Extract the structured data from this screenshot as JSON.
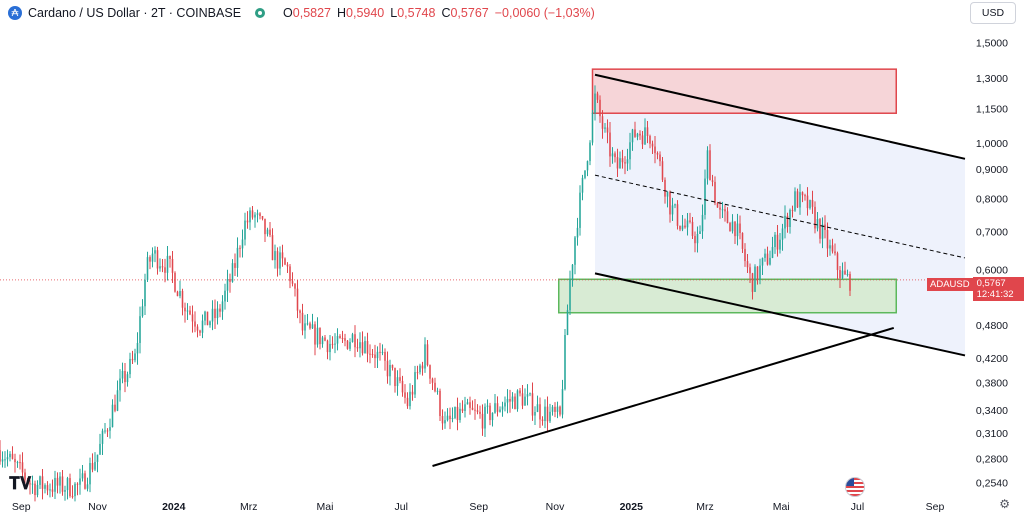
{
  "header": {
    "title": "Cardano / US Dollar · 2T · COINBASE",
    "logo_glyph": "₳",
    "o_label": "O",
    "o_value": "0,5827",
    "h_label": "H",
    "h_value": "0,5940",
    "l_label": "L",
    "l_value": "0,5748",
    "c_label": "C",
    "c_value": "0,5767",
    "change": "−0,0060 (−1,03%)"
  },
  "currency_button": "USD",
  "price_badge": {
    "symbol": "ADAUSD",
    "price": "0,5767",
    "countdown": "12:41:32"
  },
  "colors": {
    "bull": "#26a69a",
    "bear": "#e0464c",
    "resistance_fill": "#f6d5d8",
    "resistance_border": "#e0464c",
    "support_fill": "#d8ebd4",
    "support_border": "#5cb85c",
    "channel_fill": "#eef2fc",
    "trendline": "#000000"
  },
  "chart_data": {
    "type": "candlestick",
    "title": "Cardano / US Dollar · 2T · COINBASE",
    "y_scale": "log",
    "ylim": [
      0.24,
      1.62
    ],
    "y_ticks": [
      {
        "v": 1.5,
        "label": "1,5000"
      },
      {
        "v": 1.3,
        "label": "1,3000"
      },
      {
        "v": 1.15,
        "label": "1,1500"
      },
      {
        "v": 1.0,
        "label": "1,0000"
      },
      {
        "v": 0.9,
        "label": "0,9000"
      },
      {
        "v": 0.8,
        "label": "0,8000"
      },
      {
        "v": 0.7,
        "label": "0,7000"
      },
      {
        "v": 0.6,
        "label": "0,6000"
      },
      {
        "v": 0.48,
        "label": "0,4800"
      },
      {
        "v": 0.42,
        "label": "0,4200"
      },
      {
        "v": 0.38,
        "label": "0,3800"
      },
      {
        "v": 0.34,
        "label": "0,3400"
      },
      {
        "v": 0.31,
        "label": "0,3100"
      },
      {
        "v": 0.28,
        "label": "0,2800"
      },
      {
        "v": 0.254,
        "label": "0,2540"
      }
    ],
    "xlim": [
      "2023-08-15",
      "2025-09-25"
    ],
    "x_ticks": [
      {
        "date": "2023-09-01",
        "label": "Sep",
        "bold": false
      },
      {
        "date": "2023-11-01",
        "label": "Nov",
        "bold": false
      },
      {
        "date": "2024-01-01",
        "label": "2024",
        "bold": true
      },
      {
        "date": "2024-03-01",
        "label": "Mrz",
        "bold": false
      },
      {
        "date": "2024-05-01",
        "label": "Mai",
        "bold": false
      },
      {
        "date": "2024-07-01",
        "label": "Jul",
        "bold": false
      },
      {
        "date": "2024-09-01",
        "label": "Sep",
        "bold": false
      },
      {
        "date": "2024-11-01",
        "label": "Nov",
        "bold": false
      },
      {
        "date": "2025-01-01",
        "label": "2025",
        "bold": true
      },
      {
        "date": "2025-03-01",
        "label": "Mrz",
        "bold": false
      },
      {
        "date": "2025-05-01",
        "label": "Mai",
        "bold": false
      },
      {
        "date": "2025-07-01",
        "label": "Jul",
        "bold": false
      },
      {
        "date": "2025-09-01",
        "label": "Sep",
        "bold": false
      }
    ],
    "candle_period_days": 2,
    "price_path": [
      [
        "2023-08-15",
        0.29
      ],
      [
        "2023-09-10",
        0.252
      ],
      [
        "2023-10-18",
        0.25
      ],
      [
        "2023-11-01",
        0.285
      ],
      [
        "2023-11-20",
        0.38
      ],
      [
        "2023-12-01",
        0.42
      ],
      [
        "2023-12-10",
        0.6
      ],
      [
        "2023-12-15",
        0.64
      ],
      [
        "2023-12-28",
        0.61
      ],
      [
        "2024-01-10",
        0.52
      ],
      [
        "2024-01-22",
        0.48
      ],
      [
        "2024-02-05",
        0.5
      ],
      [
        "2024-02-18",
        0.6
      ],
      [
        "2024-02-26",
        0.72
      ],
      [
        "2024-03-05",
        0.75
      ],
      [
        "2024-03-14",
        0.7
      ],
      [
        "2024-03-22",
        0.63
      ],
      [
        "2024-04-02",
        0.6
      ],
      [
        "2024-04-13",
        0.47
      ],
      [
        "2024-04-25",
        0.46
      ],
      [
        "2024-05-10",
        0.44
      ],
      [
        "2024-05-25",
        0.46
      ],
      [
        "2024-06-10",
        0.43
      ],
      [
        "2024-06-25",
        0.39
      ],
      [
        "2024-07-06",
        0.35
      ],
      [
        "2024-07-20",
        0.43
      ],
      [
        "2024-08-05",
        0.32
      ],
      [
        "2024-08-20",
        0.34
      ],
      [
        "2024-09-05",
        0.33
      ],
      [
        "2024-09-20",
        0.35
      ],
      [
        "2024-10-05",
        0.36
      ],
      [
        "2024-10-20",
        0.34
      ],
      [
        "2024-11-05",
        0.33
      ],
      [
        "2024-11-12",
        0.55
      ],
      [
        "2024-11-18",
        0.72
      ],
      [
        "2024-11-25",
        0.9
      ],
      [
        "2024-12-03",
        1.2
      ],
      [
        "2024-12-10",
        1.05
      ],
      [
        "2024-12-20",
        0.9
      ],
      [
        "2025-01-05",
        1.05
      ],
      [
        "2025-01-18",
        1.03
      ],
      [
        "2025-02-01",
        0.78
      ],
      [
        "2025-02-10",
        0.72
      ],
      [
        "2025-02-25",
        0.68
      ],
      [
        "2025-03-03",
        0.95
      ],
      [
        "2025-03-12",
        0.75
      ],
      [
        "2025-03-25",
        0.72
      ],
      [
        "2025-04-07",
        0.57
      ],
      [
        "2025-04-20",
        0.63
      ],
      [
        "2025-05-01",
        0.7
      ],
      [
        "2025-05-12",
        0.8
      ],
      [
        "2025-05-22",
        0.78
      ],
      [
        "2025-06-05",
        0.68
      ],
      [
        "2025-06-16",
        0.6
      ],
      [
        "2025-06-21",
        0.58
      ],
      [
        "2025-06-25",
        0.5767
      ]
    ],
    "last_price": 0.5767,
    "annotations": {
      "resistance_zone": {
        "x0": "2024-12-01",
        "x1": "2025-08-01",
        "y0": 1.13,
        "y1": 1.35
      },
      "support_zone": {
        "x0": "2024-11-04",
        "x1": "2025-08-01",
        "y0": 0.505,
        "y1": 0.578
      },
      "channel_fill": [
        [
          "2024-12-03",
          1.32
        ],
        [
          "2025-09-25",
          0.94
        ],
        [
          "2025-09-25",
          0.425
        ],
        [
          "2024-12-03",
          0.592
        ]
      ],
      "channel_top": [
        [
          "2024-12-03",
          1.32
        ],
        [
          "2025-09-25",
          0.94
        ]
      ],
      "channel_bottom": [
        [
          "2024-12-03",
          0.592
        ],
        [
          "2025-09-25",
          0.425
        ]
      ],
      "channel_mid": [
        [
          "2024-12-03",
          0.88
        ],
        [
          "2025-09-25",
          0.63
        ]
      ],
      "support_trendline": [
        [
          "2024-07-26",
          0.272
        ],
        [
          "2025-07-30",
          0.475
        ]
      ]
    }
  }
}
